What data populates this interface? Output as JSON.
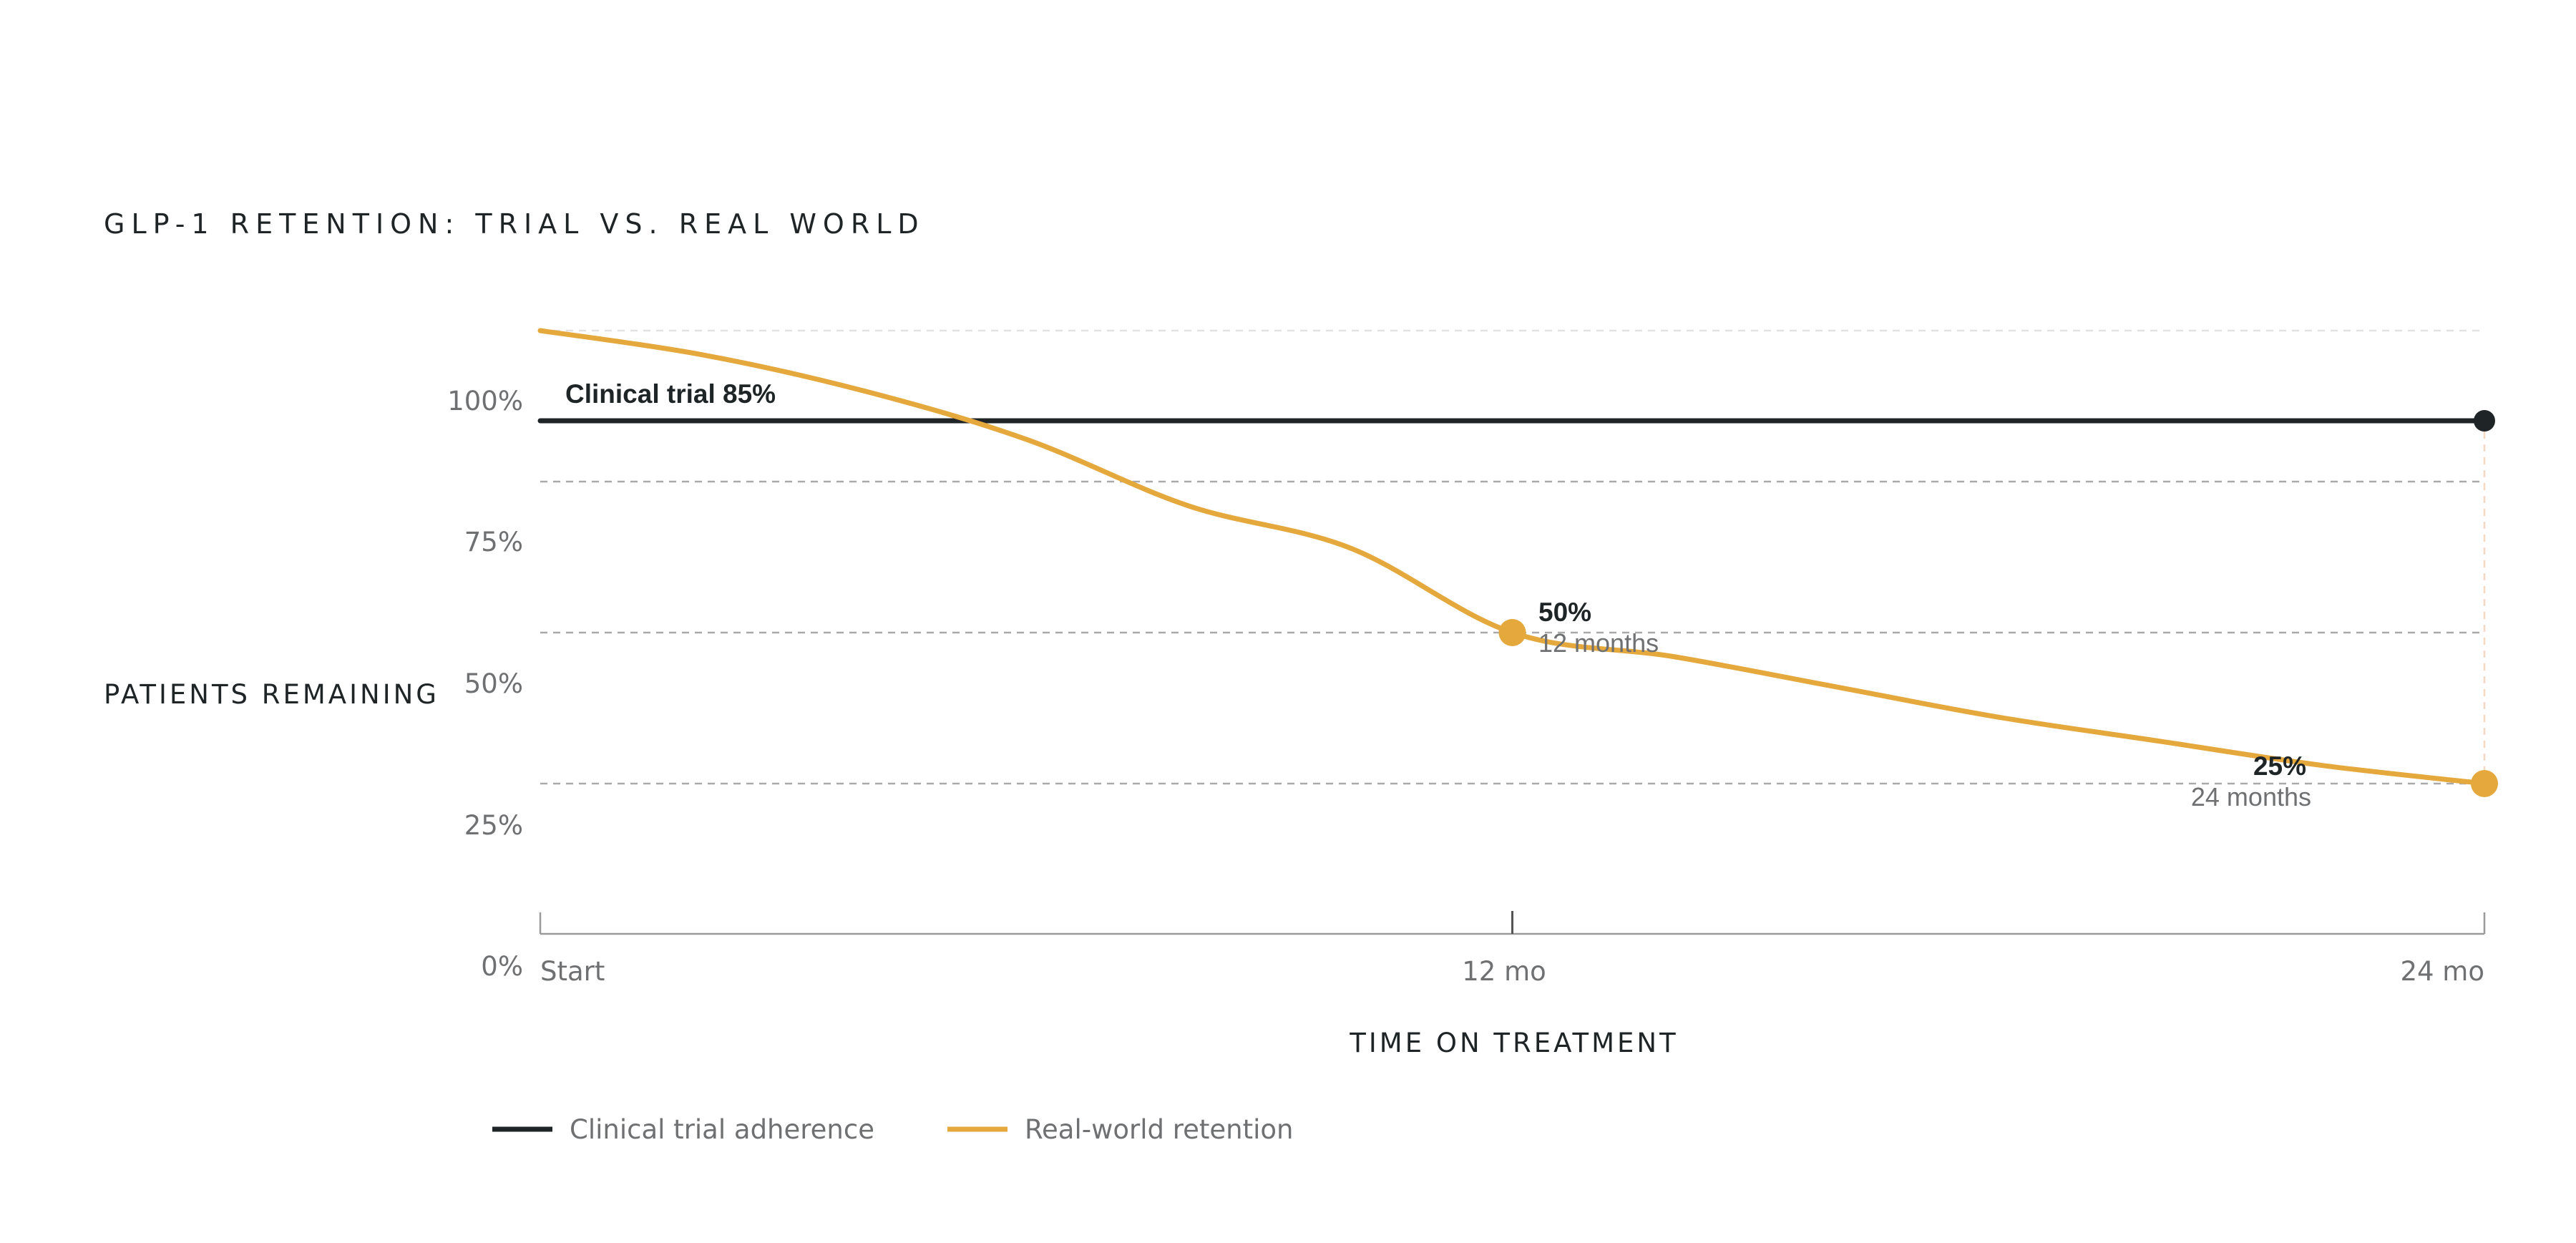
{
  "chart_data": {
    "type": "line",
    "title": "GLP-1 RETENTION: TRIAL VS. REAL WORLD",
    "xlabel": "TIME ON TREATMENT",
    "ylabel": "PATIENTS REMAINING",
    "x_ticks": [
      "Start",
      "12 mo",
      "24 mo"
    ],
    "y_ticks": [
      "100%",
      "75%",
      "50%",
      "25%",
      "0%"
    ],
    "x_range": [
      0,
      24
    ],
    "y_range": [
      0,
      100
    ],
    "grid": true,
    "series": [
      {
        "name": "Clinical trial adherence",
        "color": "#1f2426",
        "points": [
          [
            0,
            85
          ],
          [
            24,
            85
          ]
        ]
      },
      {
        "name": "Real-world retention",
        "color": "#e5a83c",
        "points": [
          [
            0,
            100
          ],
          [
            2,
            96
          ],
          [
            4,
            90
          ],
          [
            6,
            82
          ],
          [
            8,
            71
          ],
          [
            10,
            64
          ],
          [
            12,
            50
          ],
          [
            14,
            46
          ],
          [
            16,
            41
          ],
          [
            18,
            36
          ],
          [
            20,
            32
          ],
          [
            22,
            28
          ],
          [
            24,
            25
          ]
        ]
      }
    ],
    "annotations": [
      {
        "text": "Clinical trial 85%",
        "x": 0,
        "y": 85,
        "series": "Clinical trial adherence"
      },
      {
        "value": "50%",
        "sub": "12 months",
        "x": 12,
        "y": 50,
        "series": "Real-world retention"
      },
      {
        "value": "25%",
        "sub": "24 months",
        "x": 24,
        "y": 25,
        "series": "Real-world retention"
      }
    ],
    "legend_position": "bottom-left"
  }
}
